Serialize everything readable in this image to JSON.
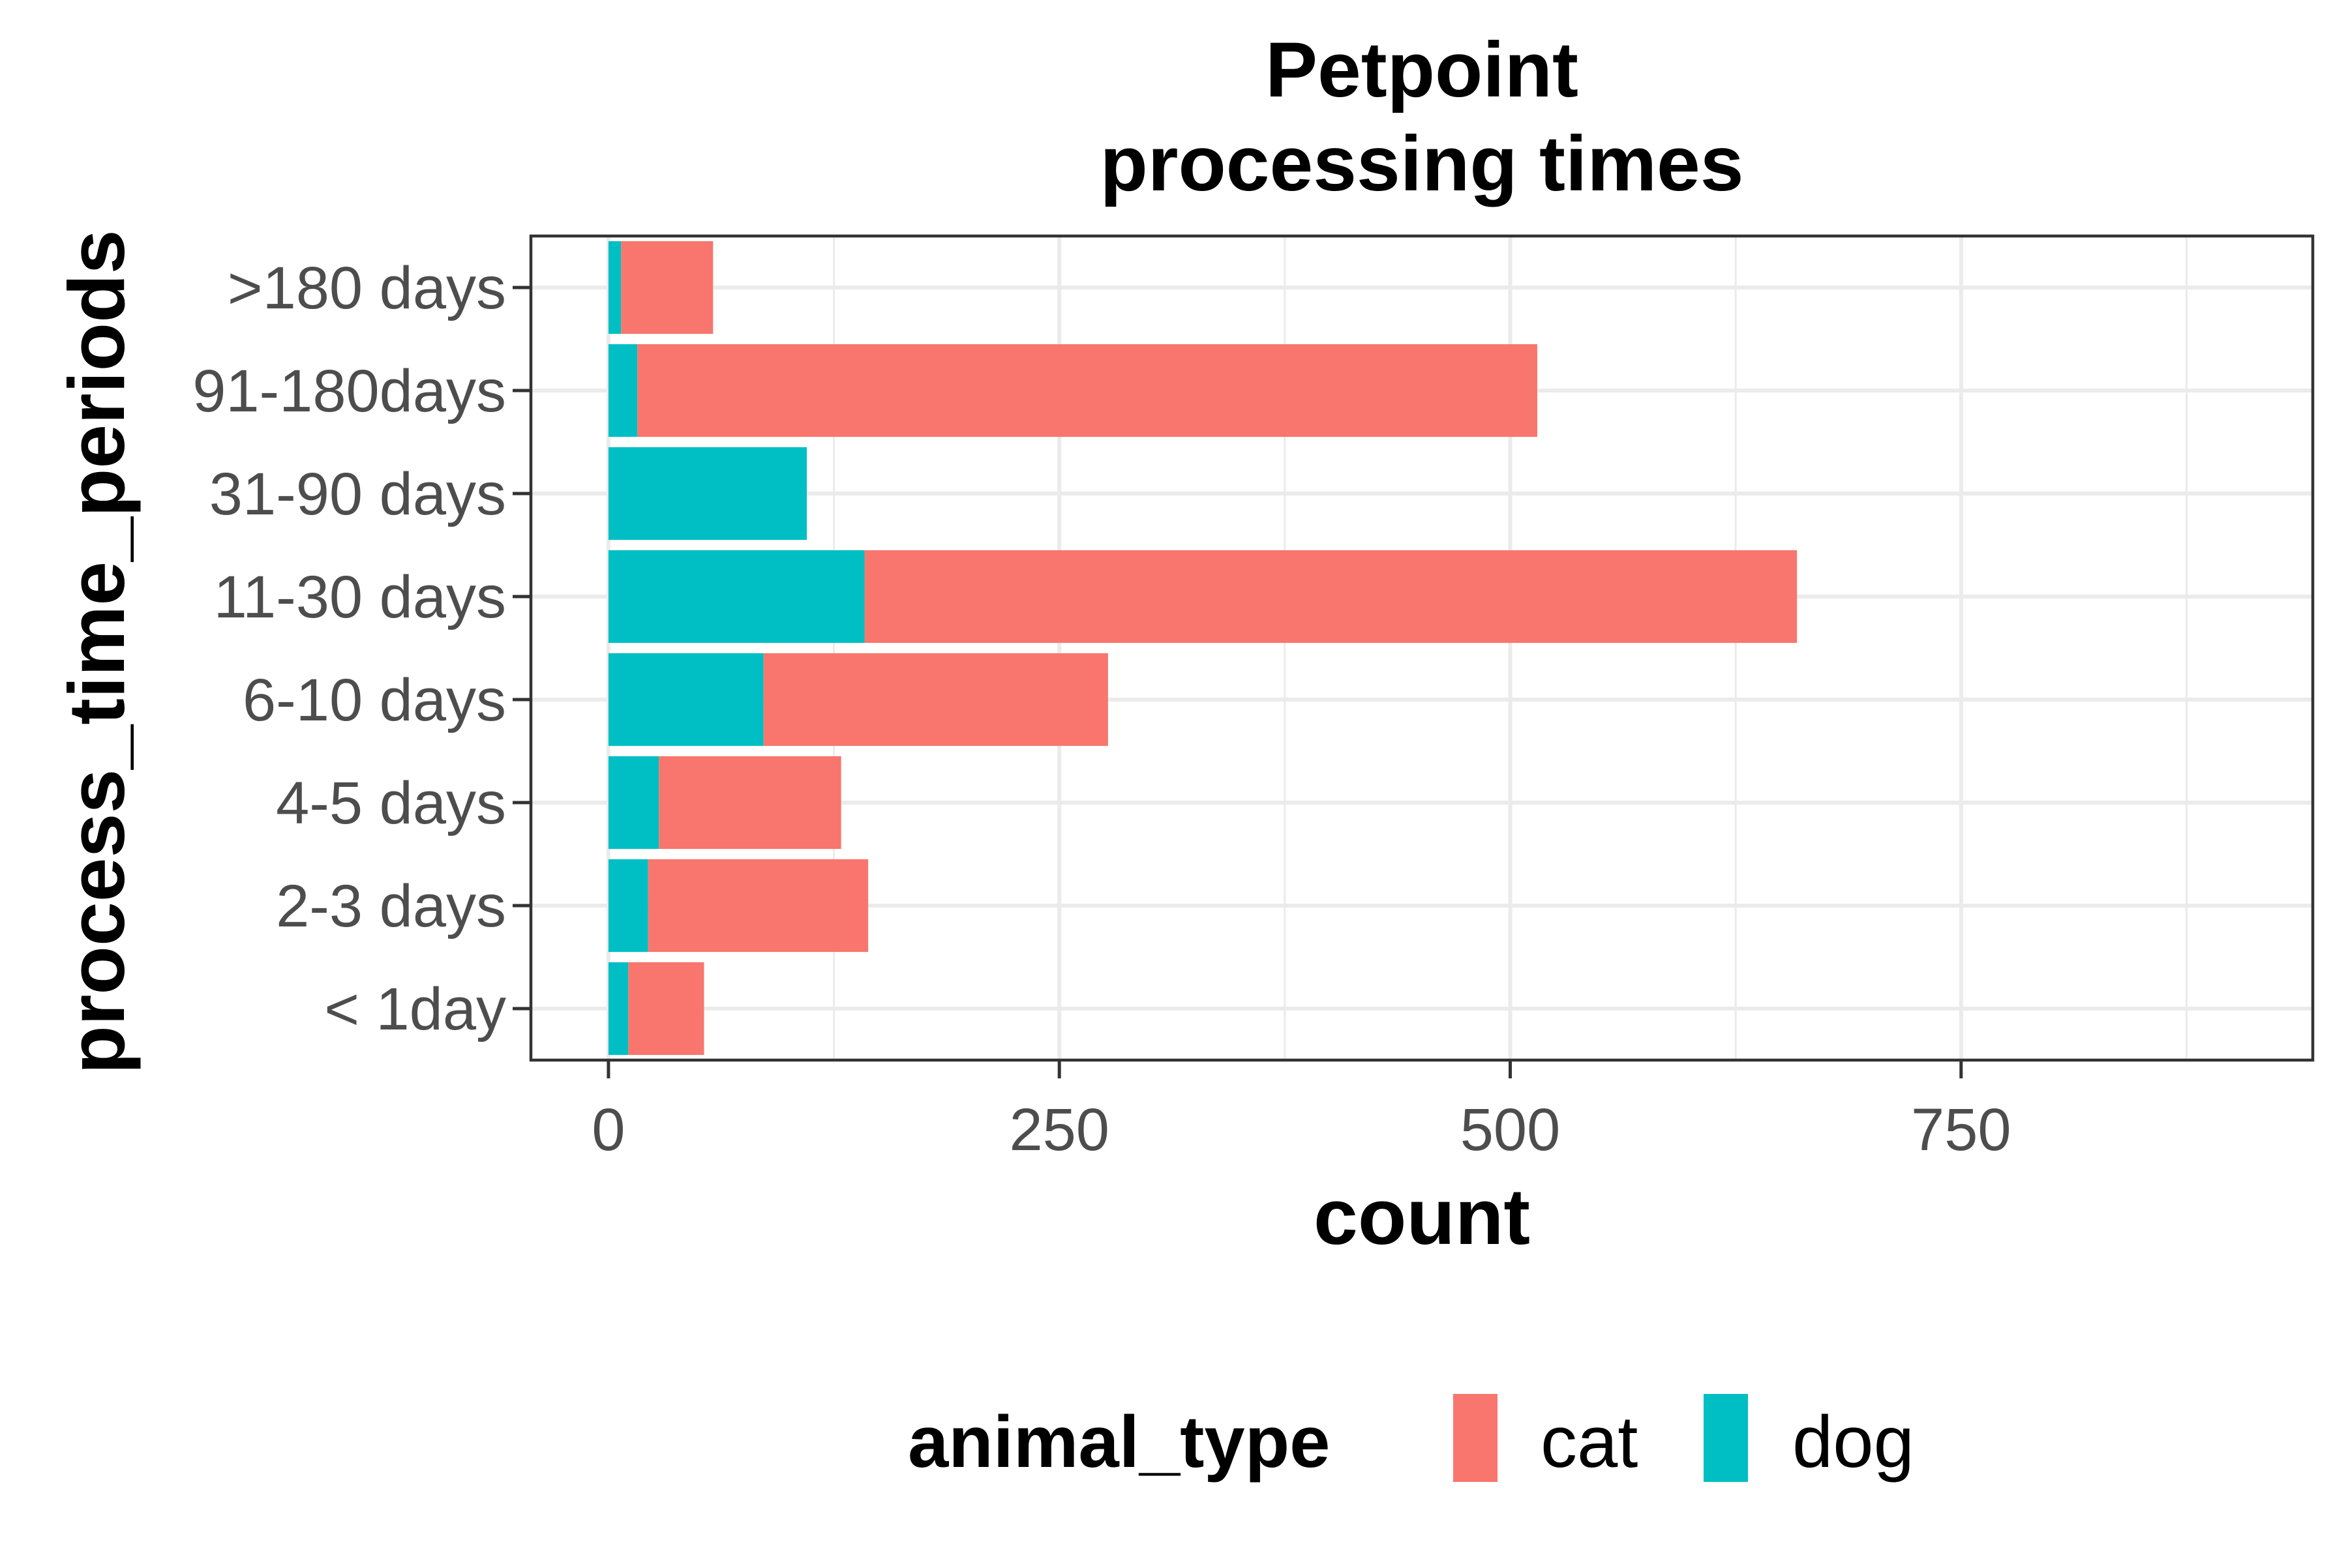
{
  "chart_data": {
    "type": "bar",
    "orientation": "horizontal",
    "stacked": true,
    "title_lines": [
      "Petpoint",
      "processing times"
    ],
    "xlabel": "count",
    "ylabel": "process_time_periods",
    "categories": [
      ">180 days",
      "91-180days",
      "31-90 days",
      "11-30 days",
      "6-10 days",
      "4-5 days",
      "2-3 days",
      "< 1day"
    ],
    "series": [
      {
        "name": "dog",
        "color": "#00BFC4",
        "values": [
          7,
          16,
          110,
          142,
          86,
          28,
          22,
          11
        ]
      },
      {
        "name": "cat",
        "color": "#F8766D",
        "values": [
          51,
          499,
          0,
          517,
          191,
          101,
          122,
          42
        ]
      }
    ],
    "xlim": [
      -43,
      945
    ],
    "xticks": [
      0,
      250,
      500,
      750
    ],
    "xtick_labels": [
      "0",
      "250",
      "500",
      "750"
    ],
    "grid": true,
    "legend": {
      "position": "bottom",
      "title": "animal_type",
      "items": [
        {
          "label": "cat",
          "color": "#F8766D"
        },
        {
          "label": "dog",
          "color": "#00BFC4"
        }
      ]
    }
  }
}
